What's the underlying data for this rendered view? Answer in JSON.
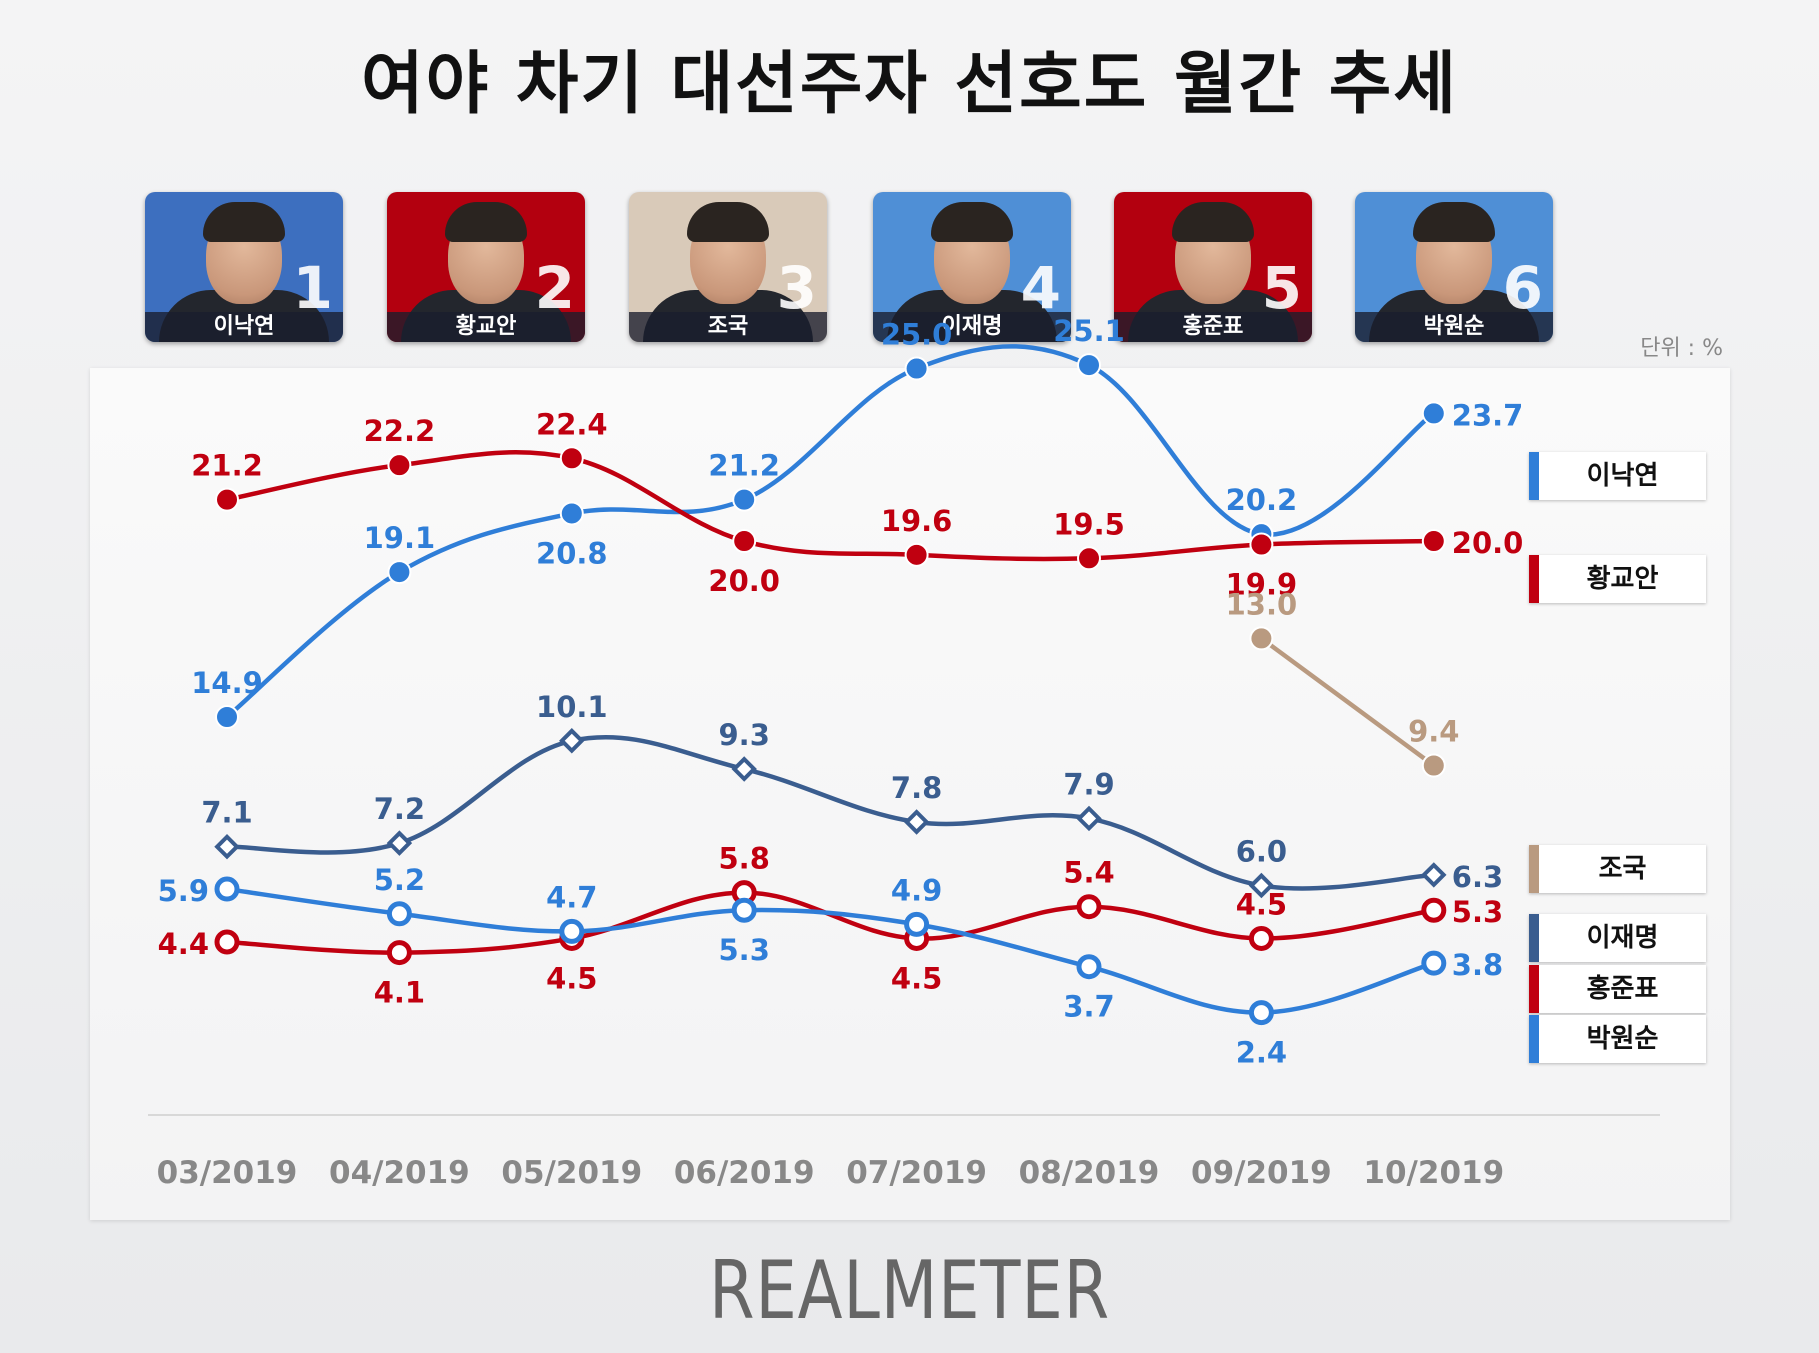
{
  "title": "여야 차기 대선주자 선호도 월간 추세",
  "unit_label": "단위 : %",
  "brand": "REALMETER",
  "candidates": [
    {
      "rank": "1",
      "name": "이낙연",
      "bg": "#3d6fbf"
    },
    {
      "rank": "2",
      "name": "황교안",
      "bg": "#b3000f"
    },
    {
      "rank": "3",
      "name": "조국",
      "bg": "#d9cab9"
    },
    {
      "rank": "4",
      "name": "이재명",
      "bg": "#4f8fd6"
    },
    {
      "rank": "5",
      "name": "홍준표",
      "bg": "#b3000f"
    },
    {
      "rank": "6",
      "name": "박원순",
      "bg": "#4f8fd6"
    }
  ],
  "chart_data": {
    "type": "line",
    "categories": [
      "03/2019",
      "04/2019",
      "05/2019",
      "06/2019",
      "07/2019",
      "08/2019",
      "09/2019",
      "10/2019"
    ],
    "title": "여야 차기 대선주자 선호도 월간 추세",
    "unit": "%",
    "series": [
      {
        "name": "이낙연",
        "color": "#2f7ed8",
        "marker": "filled-circle",
        "values": [
          14.9,
          19.1,
          20.8,
          21.2,
          25.0,
          25.1,
          20.2,
          23.7
        ]
      },
      {
        "name": "황교안",
        "color": "#c00010",
        "marker": "filled-circle",
        "values": [
          21.2,
          22.2,
          22.4,
          20.0,
          19.6,
          19.5,
          19.9,
          20.0
        ]
      },
      {
        "name": "조국",
        "color": "#b99a80",
        "marker": "filled-circle",
        "values": [
          null,
          null,
          null,
          null,
          null,
          null,
          13.0,
          9.4
        ]
      },
      {
        "name": "이재명",
        "color": "#3a5d8f",
        "marker": "diamond",
        "values": [
          7.1,
          7.2,
          10.1,
          9.3,
          7.8,
          7.9,
          6.0,
          6.3
        ]
      },
      {
        "name": "홍준표",
        "color": "#c00010",
        "marker": "open-circle",
        "values": [
          4.4,
          4.1,
          4.5,
          5.8,
          4.5,
          5.4,
          4.5,
          5.3
        ]
      },
      {
        "name": "박원순",
        "color": "#2f7ed8",
        "marker": "open-circle",
        "values": [
          5.9,
          5.2,
          4.7,
          5.3,
          4.9,
          3.7,
          2.4,
          3.8
        ]
      }
    ]
  }
}
